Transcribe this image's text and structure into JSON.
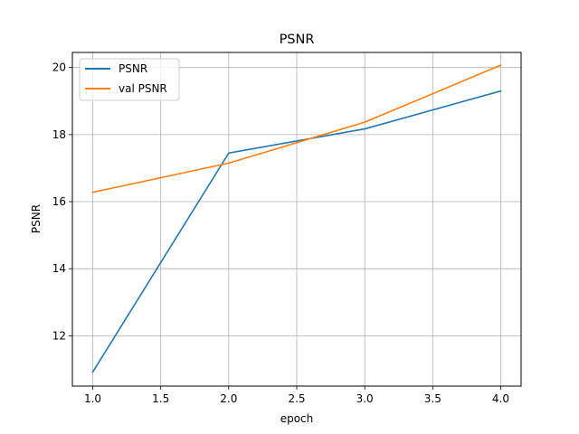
{
  "chart_data": {
    "type": "line",
    "title": "PSNR",
    "xlabel": "epoch",
    "ylabel": "PSNR",
    "xlim": [
      0.85,
      4.15
    ],
    "ylim": [
      10.5,
      20.45
    ],
    "xticks": [
      1.0,
      1.5,
      2.0,
      2.5,
      3.0,
      3.5,
      4.0
    ],
    "xtick_labels": [
      "1.0",
      "1.5",
      "2.0",
      "2.5",
      "3.0",
      "3.5",
      "4.0"
    ],
    "yticks": [
      12,
      14,
      16,
      18,
      20
    ],
    "ytick_labels": [
      "12",
      "14",
      "16",
      "18",
      "20"
    ],
    "grid": true,
    "legend_position": "top-left",
    "x": [
      1,
      2,
      3,
      4
    ],
    "series": [
      {
        "name": "PSNR",
        "color": "#1f77b4",
        "values": [
          10.92,
          17.45,
          18.17,
          19.3
        ]
      },
      {
        "name": "val PSNR",
        "color": "#ff7f0e",
        "values": [
          16.28,
          17.15,
          18.37,
          20.07
        ]
      }
    ]
  }
}
